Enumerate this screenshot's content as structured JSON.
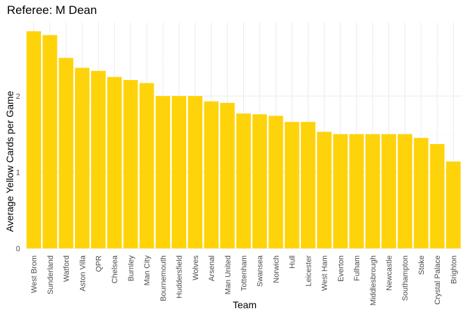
{
  "chart_data": {
    "type": "bar",
    "title": "Referee: M Dean",
    "xlabel": "Team",
    "ylabel": "Average Yellow Cards per Game",
    "categories": [
      "West Brom",
      "Sunderland",
      "Watford",
      "Aston Villa",
      "QPR",
      "Chelsea",
      "Burnley",
      "Man City",
      "Bournemouth",
      "Huddersfield",
      "Wolves",
      "Arsenal",
      "Man United",
      "Tottenham",
      "Swansea",
      "Norwich",
      "Hull",
      "Leicester",
      "West Ham",
      "Everton",
      "Fulham",
      "Middlesbrough",
      "Newcastle",
      "Southampton",
      "Stoke",
      "Crystal Palace",
      "Brighton"
    ],
    "values": [
      2.85,
      2.8,
      2.5,
      2.37,
      2.33,
      2.25,
      2.21,
      2.17,
      2.0,
      2.0,
      2.0,
      1.93,
      1.91,
      1.77,
      1.76,
      1.74,
      1.66,
      1.66,
      1.53,
      1.5,
      1.5,
      1.5,
      1.5,
      1.5,
      1.45,
      1.37,
      1.14
    ],
    "yticks": [
      0,
      1,
      2
    ],
    "ylim": [
      0,
      2.99
    ],
    "bar_color": "#FFD30A",
    "grid": true,
    "legend": "none"
  }
}
